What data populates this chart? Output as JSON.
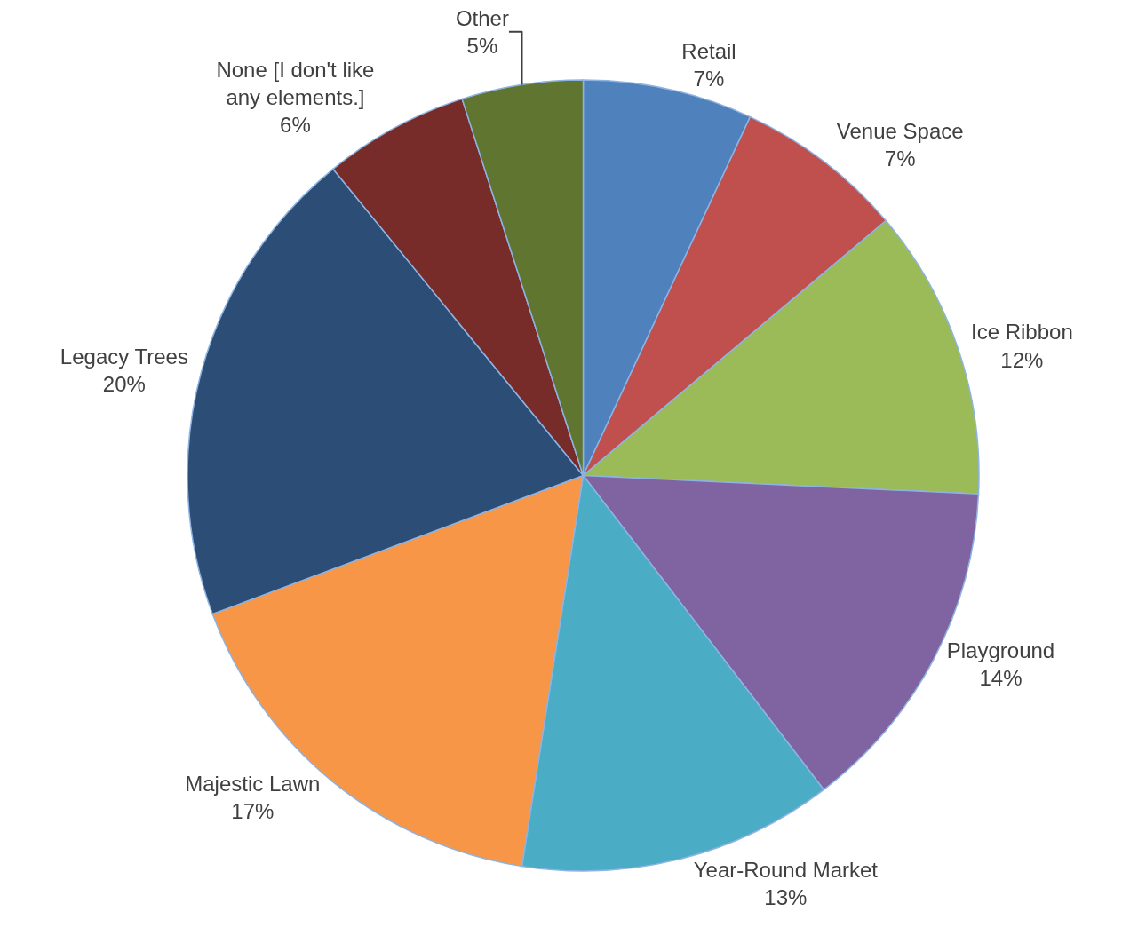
{
  "chart_data": {
    "type": "pie",
    "categories": [
      "Retail",
      "Venue Space",
      "Ice Ribbon",
      "Playground",
      "Year-Round Market",
      "Majestic Lawn",
      "Legacy Trees",
      "None [I don't like any elements.]",
      "Other"
    ],
    "values": [
      7,
      7,
      12,
      14,
      13,
      17,
      20,
      6,
      5
    ],
    "value_labels": [
      "7%",
      "7%",
      "12%",
      "14%",
      "13%",
      "17%",
      "20%",
      "6%",
      "5%"
    ],
    "colors": [
      "#4f81bd",
      "#c0504d",
      "#9bbb59",
      "#8064a2",
      "#4bacc6",
      "#f79646",
      "#2c4d75",
      "#772c2a",
      "#5f7530"
    ],
    "legend": false
  }
}
